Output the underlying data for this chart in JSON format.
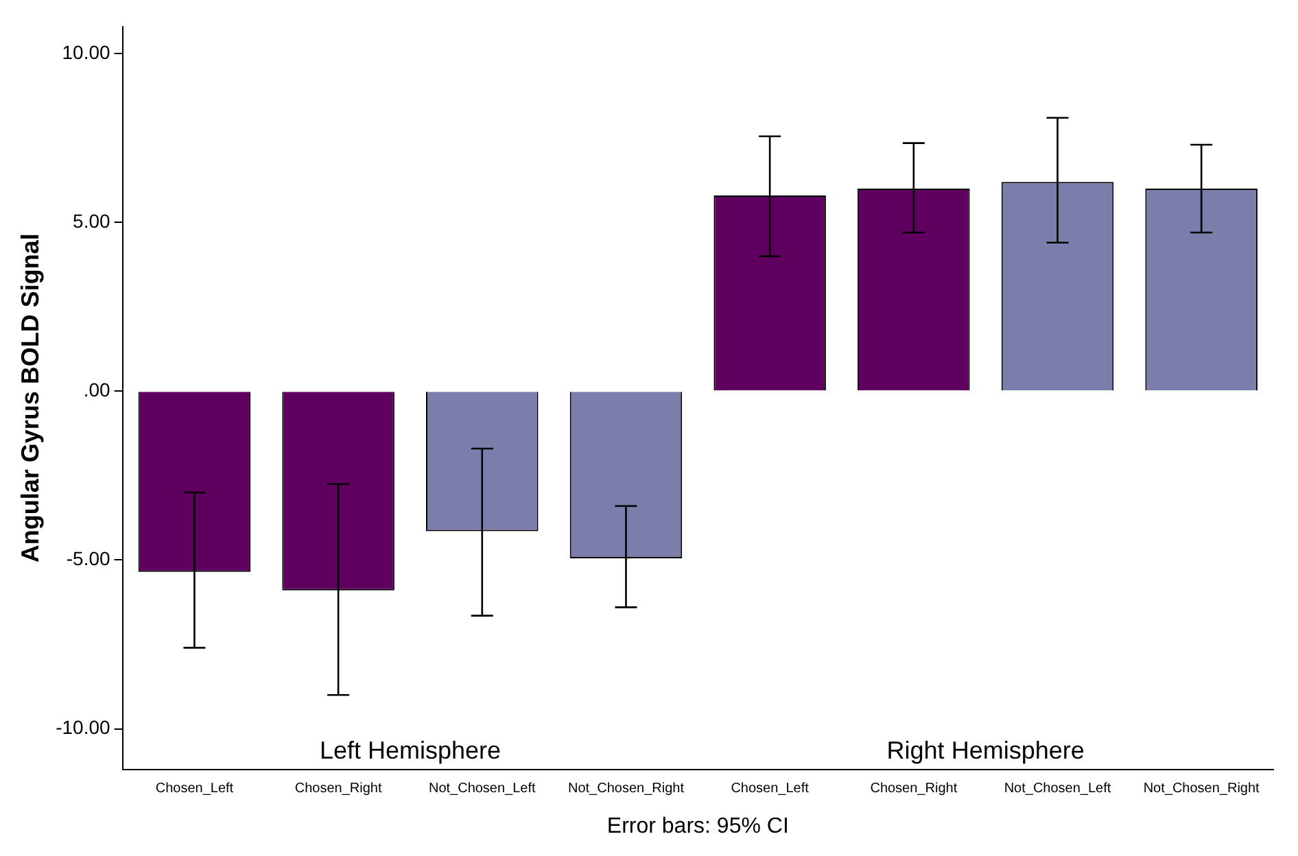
{
  "chart_data": {
    "type": "bar",
    "ylabel": "Angular Gyrus BOLD Signal",
    "xlabel": "Error bars: 95% CI",
    "categories": [
      "Chosen_Left",
      "Chosen_Right",
      "Not_Chosen_Left",
      "Not_Chosen_Right",
      "Chosen_Left",
      "Chosen_Right",
      "Not_Chosen_Left",
      "Not_Chosen_Right"
    ],
    "values": [
      -5.35,
      -5.9,
      -4.15,
      -4.95,
      5.8,
      6.0,
      6.2,
      6.0
    ],
    "colors": [
      "#5f0060",
      "#5f0060",
      "#7b7eab",
      "#7b7eab",
      "#5f0060",
      "#5f0060",
      "#7b7eab",
      "#7b7eab"
    ],
    "errors": [
      [
        -7.6,
        -3.0
      ],
      [
        -9.0,
        -2.75
      ],
      [
        -6.65,
        -1.7
      ],
      [
        -6.4,
        -3.4
      ],
      [
        4.0,
        7.55
      ],
      [
        4.7,
        7.35
      ],
      [
        4.4,
        8.1
      ],
      [
        4.7,
        7.3
      ]
    ],
    "ylim": [
      -11.2,
      10.8
    ],
    "yticks": [
      {
        "value": -10,
        "label": "-10.00"
      },
      {
        "value": -5,
        "label": "-5.00"
      },
      {
        "value": 0,
        "label": ".00"
      },
      {
        "value": 5,
        "label": "5.00"
      },
      {
        "value": 10,
        "label": "10.00"
      }
    ],
    "annotations": [
      "Left Hemisphere",
      "Right Hemisphere"
    ],
    "grid": false,
    "legend": false
  }
}
